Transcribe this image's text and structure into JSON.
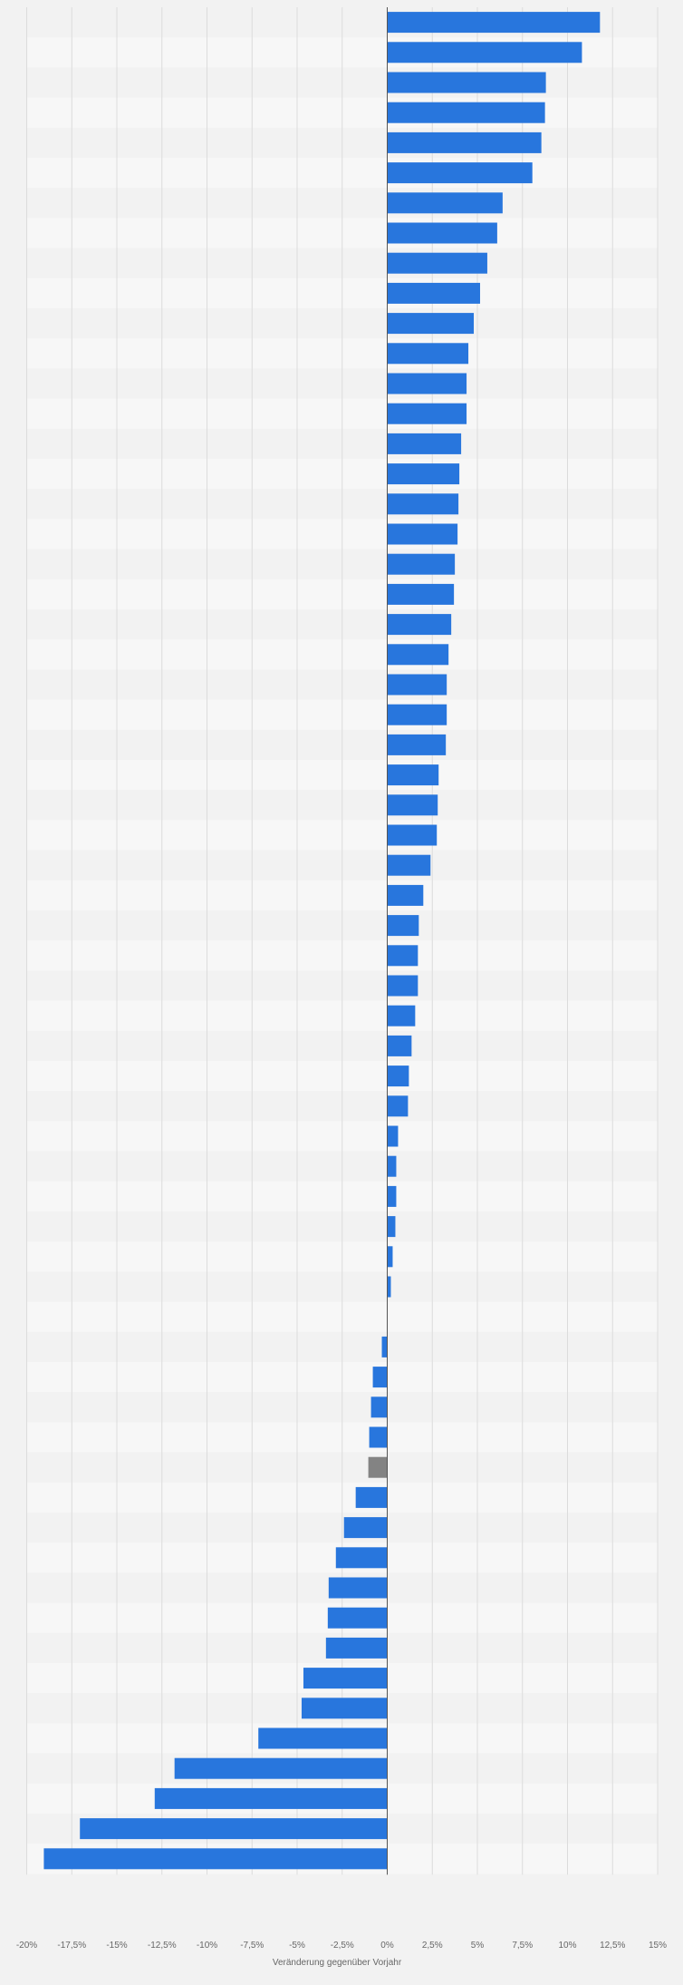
{
  "chart_data": {
    "type": "bar",
    "orientation": "horizontal",
    "xlabel": "Veränderung gegenüber Vorjahr",
    "xlim": [
      -20,
      15
    ],
    "xticks": [
      -20,
      -17.5,
      -15,
      -12.5,
      -10,
      -7.5,
      -5,
      -2.5,
      0,
      2.5,
      5,
      7.5,
      10,
      12.5,
      15
    ],
    "xtick_labels": [
      "-20%",
      "-17,5%",
      "-15%",
      "-12,5%",
      "-10%",
      "-7,5%",
      "-5%",
      "-2,5%",
      "0%",
      "2,5%",
      "5%",
      "7,5%",
      "10%",
      "12,5%",
      "15%"
    ],
    "grid": true,
    "bar_color": "#2876dd",
    "highlight_color": "#838383",
    "highlight_index": 48,
    "values": [
      11.8,
      10.8,
      8.8,
      8.75,
      8.55,
      8.05,
      6.4,
      6.1,
      5.55,
      5.15,
      4.8,
      4.5,
      4.4,
      4.4,
      4.1,
      4.0,
      3.95,
      3.9,
      3.75,
      3.7,
      3.55,
      3.4,
      3.3,
      3.3,
      3.25,
      2.85,
      2.8,
      2.75,
      2.4,
      2.0,
      1.75,
      1.7,
      1.7,
      1.55,
      1.35,
      1.2,
      1.15,
      0.6,
      0.5,
      0.5,
      0.45,
      0.3,
      0.2,
      0.0,
      -0.3,
      -0.8,
      -0.9,
      -1.0,
      -1.05,
      -1.75,
      -2.4,
      -2.85,
      -3.25,
      -3.3,
      -3.4,
      -4.65,
      -4.75,
      -7.15,
      -11.8,
      -12.9,
      -17.05,
      -19.05
    ]
  }
}
